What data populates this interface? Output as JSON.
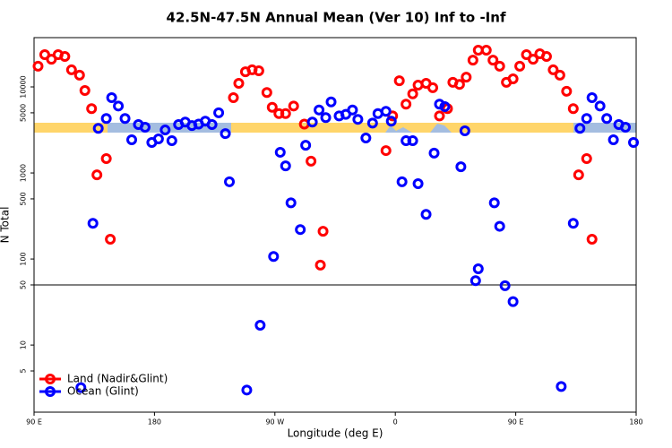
{
  "chart_data": {
    "type": "scatter",
    "title": "42.5N-47.5N Annual Mean (Ver 10)   Inf to -Inf",
    "xlabel": "Longitude (deg E)",
    "ylabel": "N Total",
    "xlim": [
      90,
      540
    ],
    "xticks": [
      {
        "value": 90,
        "label": "90 E"
      },
      {
        "value": 180,
        "label": "180"
      },
      {
        "value": 270,
        "label": "90 W"
      },
      {
        "value": 360,
        "label": "0"
      },
      {
        "value": 450,
        "label": "90 E"
      },
      {
        "value": 540,
        "label": "180"
      }
    ],
    "ylim": [
      1.66,
      37400
    ],
    "ylog": true,
    "yticks": [
      5,
      10,
      50,
      100,
      500,
      1000,
      5000,
      10000
    ],
    "hline": 50,
    "legend": "bottom-left",
    "series": [
      {
        "name": "Land (Nadir&Glint)",
        "color": "#ff0000",
        "x": [
          93,
          98,
          103,
          108,
          113,
          118,
          124,
          128,
          133,
          137,
          144,
          147,
          239,
          243,
          248,
          253,
          258,
          264,
          268,
          273,
          278,
          284,
          292,
          297,
          304,
          306,
          353,
          358,
          363,
          368,
          373,
          377,
          383,
          388,
          393,
          399,
          403,
          408,
          413,
          418,
          422,
          428,
          433,
          438,
          443,
          448,
          453,
          458,
          463,
          468,
          473,
          478,
          483,
          488,
          493,
          497,
          503,
          507
        ],
        "values": [
          17400,
          23700,
          21000,
          23700,
          22600,
          15800,
          13700,
          9100,
          5600,
          950,
          1470,
          170,
          7500,
          11000,
          15000,
          15800,
          15400,
          8600,
          5800,
          4900,
          4900,
          6000,
          3700,
          1370,
          85,
          210,
          1820,
          4600,
          11800,
          6300,
          8300,
          10500,
          11000,
          9800,
          4600,
          5600,
          11300,
          10700,
          13000,
          20500,
          26700,
          26700,
          20500,
          17400,
          11300,
          12400,
          17400,
          23700,
          21000,
          24300,
          22600,
          15800,
          13700,
          8900,
          5600,
          950,
          1470,
          170
        ]
      },
      {
        "name": "Ocean (Glint)",
        "color": "#0000ff",
        "x": [
          125,
          134,
          138,
          144,
          148,
          153,
          158,
          163,
          168,
          173,
          178,
          183,
          188,
          193,
          198,
          203,
          208,
          213,
          218,
          223,
          228,
          233,
          236,
          249,
          259,
          269,
          274,
          278,
          282,
          289,
          293,
          298,
          303,
          308,
          312,
          318,
          323,
          328,
          332,
          338,
          343,
          347,
          353,
          357,
          365,
          368,
          373,
          377,
          383,
          389,
          393,
          397,
          409,
          412,
          420,
          422,
          434,
          438,
          442,
          448,
          484,
          493,
          498,
          503,
          507,
          513,
          518,
          523,
          527,
          532,
          538
        ],
        "values": [
          3.2,
          260,
          3300,
          4300,
          7500,
          6000,
          4300,
          2430,
          3650,
          3400,
          2260,
          2490,
          3160,
          2370,
          3650,
          3900,
          3560,
          3700,
          4000,
          3650,
          5000,
          2870,
          790,
          3.0,
          17,
          107,
          1740,
          1210,
          450,
          220,
          2100,
          3900,
          5400,
          4400,
          6700,
          4600,
          4800,
          5400,
          4200,
          2550,
          3800,
          4900,
          5200,
          4000,
          790,
          2370,
          2370,
          750,
          330,
          1700,
          6300,
          5900,
          1180,
          3090,
          56,
          77,
          450,
          240,
          49,
          32,
          3.3,
          260,
          3300,
          4300,
          7500,
          6000,
          4300,
          2430,
          3650,
          3400,
          2260
        ]
      }
    ]
  }
}
